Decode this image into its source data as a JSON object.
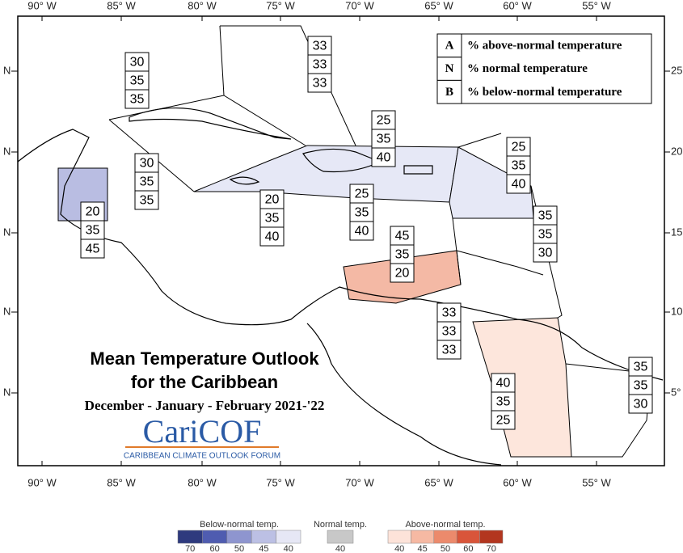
{
  "map": {
    "lon_labels": [
      "90° W",
      "85° W",
      "80° W",
      "75° W",
      "70° W",
      "65° W",
      "60° W",
      "55° W"
    ],
    "left_lat_labels": [
      "N",
      "N",
      "N",
      "N",
      "N"
    ],
    "right_lat_labels": [
      "25",
      "20",
      "15",
      "10",
      "5°"
    ]
  },
  "legend": [
    {
      "key": "A",
      "label": "% above-normal temperature"
    },
    {
      "key": "N",
      "label": "% normal temperature"
    },
    {
      "key": "B",
      "label": "% below-normal temperature"
    }
  ],
  "regions": [
    {
      "values": [
        33,
        33,
        33
      ]
    },
    {
      "values": [
        30,
        35,
        35
      ]
    },
    {
      "values": [
        20,
        35,
        45
      ]
    },
    {
      "values": [
        30,
        35,
        35
      ]
    },
    {
      "values": [
        20,
        35,
        40
      ]
    },
    {
      "values": [
        25,
        35,
        40
      ]
    },
    {
      "values": [
        25,
        35,
        40
      ]
    },
    {
      "values": [
        25,
        35,
        40
      ]
    },
    {
      "values": [
        35,
        35,
        30
      ]
    },
    {
      "values": [
        45,
        35,
        20
      ]
    },
    {
      "values": [
        33,
        33,
        33
      ]
    },
    {
      "values": [
        40,
        35,
        25
      ]
    },
    {
      "values": [
        35,
        35,
        30
      ]
    }
  ],
  "title": {
    "line1": "Mean Temperature Outlook",
    "line2": "for the Caribbean",
    "period": "December - January - February 2021-'22"
  },
  "logo": {
    "name": "CariCOF",
    "tagline": "CARIBBEAN CLIMATE OUTLOOK FORUM"
  },
  "colorbar": [
    {
      "label": "Below-normal temp.",
      "colors": [
        "#2e3a7e",
        "#4f5cb0",
        "#8e95cf",
        "#bcc0e4",
        "#e6e7f5"
      ],
      "ticks": [
        70,
        60,
        50,
        45,
        40
      ]
    },
    {
      "label": "Normal temp.",
      "colors": [
        "#c8c8c8"
      ],
      "ticks": [
        40
      ]
    },
    {
      "label": "Above-normal temp.",
      "colors": [
        "#fde3d9",
        "#f6b9a3",
        "#ec8a6c",
        "#d9553a",
        "#b3361f"
      ],
      "ticks": [
        40,
        45,
        50,
        60,
        70
      ]
    }
  ]
}
